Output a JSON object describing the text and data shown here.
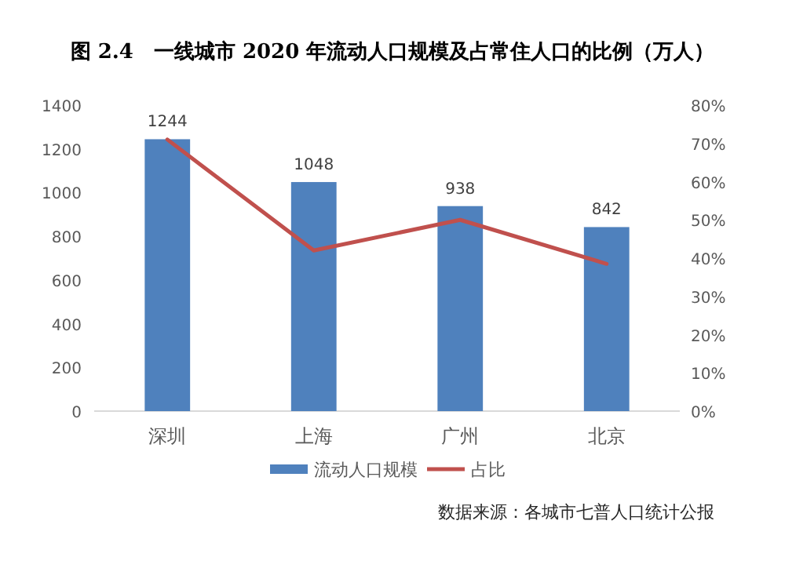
{
  "chart_data": {
    "type": "bar",
    "title": "图 2.4　一线城市 2020 年流动人口规模及占常住人口的比例（万人）",
    "categories": [
      "深圳",
      "上海",
      "广州",
      "北京"
    ],
    "series": [
      {
        "name": "流动人口规模",
        "color": "#4f81bd",
        "values": [
          1244,
          1048,
          938,
          842
        ],
        "value_labels": [
          "1244",
          "1048",
          "938",
          "842"
        ]
      },
      {
        "name": "占比",
        "type": "line",
        "axis": "y2",
        "color": "#c0504d",
        "values": [
          71,
          42,
          50,
          38.5
        ]
      }
    ],
    "ylim": [
      0,
      1400
    ],
    "yticks": [
      0,
      200,
      400,
      600,
      800,
      1000,
      1200,
      1400
    ],
    "y2lim": [
      0,
      80
    ],
    "y2ticks": [
      {
        "value": 0,
        "label": "0%"
      },
      {
        "value": 10,
        "label": "10%"
      },
      {
        "value": 20,
        "label": "20%"
      },
      {
        "value": 30,
        "label": "30%"
      },
      {
        "value": 40,
        "label": "40%"
      },
      {
        "value": 50,
        "label": "50%"
      },
      {
        "value": 60,
        "label": "60%"
      },
      {
        "value": 70,
        "label": "70%"
      },
      {
        "value": 80,
        "label": "80%"
      }
    ],
    "legend": "bottom",
    "annotations": [
      "数据来源：各城市七普人口统计公报"
    ]
  }
}
